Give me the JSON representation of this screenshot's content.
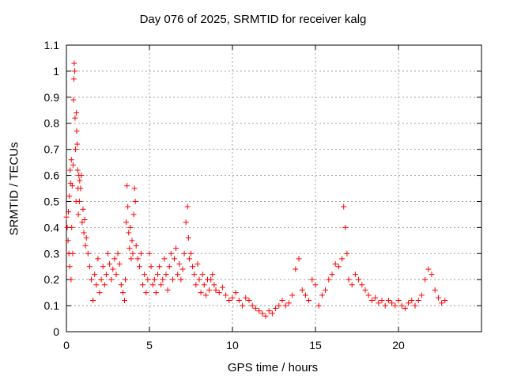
{
  "chart_data": {
    "type": "scatter",
    "title": "Day 076 of 2025, SRMTID for receiver kalg",
    "xlabel": "GPS time / hours",
    "ylabel": "SRMTID / TECUs",
    "xlim": [
      0,
      25
    ],
    "ylim": [
      0,
      1.1
    ],
    "xticks": [
      0,
      5,
      10,
      15,
      20
    ],
    "xtick_labels": [
      "0",
      "5",
      "10",
      "15",
      "20"
    ],
    "yticks": [
      0,
      0.1,
      0.2,
      0.3,
      0.4,
      0.5,
      0.6,
      0.7,
      0.8,
      0.9,
      1,
      1.1
    ],
    "ytick_labels": [
      "0",
      "0.1",
      "0.2",
      "0.3",
      "0.4",
      "0.5",
      "0.6",
      "0.7",
      "0.8",
      "0.9",
      "1",
      "1.1"
    ],
    "grid": true,
    "marker": "+",
    "color": "#ff0000",
    "series": [
      {
        "name": "SRMTID",
        "points": [
          [
            0.0,
            0.44
          ],
          [
            0.05,
            0.4
          ],
          [
            0.1,
            0.35
          ],
          [
            0.12,
            0.46
          ],
          [
            0.15,
            0.3
          ],
          [
            0.18,
            0.52
          ],
          [
            0.2,
            0.25
          ],
          [
            0.22,
            0.62
          ],
          [
            0.25,
            0.57
          ],
          [
            0.28,
            0.2
          ],
          [
            0.3,
            0.66
          ],
          [
            0.32,
            0.4
          ],
          [
            0.35,
            0.56
          ],
          [
            0.38,
            0.3
          ],
          [
            0.4,
            0.64
          ],
          [
            0.42,
            0.89
          ],
          [
            0.45,
            0.97
          ],
          [
            0.47,
            1.03
          ],
          [
            0.5,
            1.0
          ],
          [
            0.52,
            0.82
          ],
          [
            0.55,
            0.7
          ],
          [
            0.58,
            0.5
          ],
          [
            0.6,
            0.84
          ],
          [
            0.62,
            0.77
          ],
          [
            0.65,
            0.72
          ],
          [
            0.68,
            0.62
          ],
          [
            0.7,
            0.55
          ],
          [
            0.72,
            0.45
          ],
          [
            0.75,
            0.6
          ],
          [
            0.78,
            0.5
          ],
          [
            0.8,
            0.58
          ],
          [
            0.85,
            0.55
          ],
          [
            0.9,
            0.6
          ],
          [
            0.95,
            0.42
          ],
          [
            1.0,
            0.47
          ],
          [
            1.05,
            0.38
          ],
          [
            1.1,
            0.43
          ],
          [
            1.15,
            0.33
          ],
          [
            1.2,
            0.36
          ],
          [
            1.3,
            0.3
          ],
          [
            1.4,
            0.25
          ],
          [
            1.5,
            0.2
          ],
          [
            1.6,
            0.12
          ],
          [
            1.7,
            0.22
          ],
          [
            1.8,
            0.18
          ],
          [
            1.9,
            0.28
          ],
          [
            2.0,
            0.15
          ],
          [
            2.1,
            0.2
          ],
          [
            2.2,
            0.25
          ],
          [
            2.3,
            0.18
          ],
          [
            2.4,
            0.22
          ],
          [
            2.5,
            0.3
          ],
          [
            2.6,
            0.26
          ],
          [
            2.7,
            0.2
          ],
          [
            2.8,
            0.24
          ],
          [
            2.9,
            0.28
          ],
          [
            3.0,
            0.22
          ],
          [
            3.1,
            0.3
          ],
          [
            3.2,
            0.26
          ],
          [
            3.3,
            0.18
          ],
          [
            3.4,
            0.15
          ],
          [
            3.5,
            0.12
          ],
          [
            3.55,
            0.2
          ],
          [
            3.6,
            0.42
          ],
          [
            3.65,
            0.56
          ],
          [
            3.7,
            0.48
          ],
          [
            3.75,
            0.38
          ],
          [
            3.8,
            0.32
          ],
          [
            3.85,
            0.4
          ],
          [
            3.9,
            0.28
          ],
          [
            3.95,
            0.35
          ],
          [
            4.0,
            0.3
          ],
          [
            4.05,
            0.45
          ],
          [
            4.1,
            0.55
          ],
          [
            4.15,
            0.5
          ],
          [
            4.2,
            0.33
          ],
          [
            4.3,
            0.28
          ],
          [
            4.4,
            0.25
          ],
          [
            4.5,
            0.3
          ],
          [
            4.6,
            0.18
          ],
          [
            4.7,
            0.22
          ],
          [
            4.8,
            0.15
          ],
          [
            4.9,
            0.2
          ],
          [
            5.0,
            0.3
          ],
          [
            5.1,
            0.25
          ],
          [
            5.2,
            0.18
          ],
          [
            5.3,
            0.2
          ],
          [
            5.4,
            0.15
          ],
          [
            5.5,
            0.22
          ],
          [
            5.6,
            0.25
          ],
          [
            5.7,
            0.18
          ],
          [
            5.8,
            0.2
          ],
          [
            5.9,
            0.28
          ],
          [
            6.0,
            0.22
          ],
          [
            6.1,
            0.16
          ],
          [
            6.2,
            0.25
          ],
          [
            6.3,
            0.3
          ],
          [
            6.4,
            0.2
          ],
          [
            6.5,
            0.28
          ],
          [
            6.6,
            0.32
          ],
          [
            6.7,
            0.22
          ],
          [
            6.8,
            0.26
          ],
          [
            6.9,
            0.2
          ],
          [
            7.0,
            0.24
          ],
          [
            7.1,
            0.3
          ],
          [
            7.2,
            0.42
          ],
          [
            7.3,
            0.48
          ],
          [
            7.35,
            0.36
          ],
          [
            7.4,
            0.28
          ],
          [
            7.5,
            0.3
          ],
          [
            7.6,
            0.25
          ],
          [
            7.7,
            0.22
          ],
          [
            7.8,
            0.18
          ],
          [
            7.9,
            0.26
          ],
          [
            8.0,
            0.2
          ],
          [
            8.1,
            0.15
          ],
          [
            8.2,
            0.22
          ],
          [
            8.3,
            0.18
          ],
          [
            8.4,
            0.14
          ],
          [
            8.5,
            0.2
          ],
          [
            8.6,
            0.16
          ],
          [
            8.7,
            0.2
          ],
          [
            8.8,
            0.22
          ],
          [
            8.9,
            0.18
          ],
          [
            9.0,
            0.16
          ],
          [
            9.2,
            0.15
          ],
          [
            9.4,
            0.17
          ],
          [
            9.6,
            0.14
          ],
          [
            9.8,
            0.12
          ],
          [
            10.0,
            0.13
          ],
          [
            10.2,
            0.15
          ],
          [
            10.4,
            0.12
          ],
          [
            10.6,
            0.1
          ],
          [
            10.8,
            0.13
          ],
          [
            11.0,
            0.12
          ],
          [
            11.2,
            0.1
          ],
          [
            11.4,
            0.09
          ],
          [
            11.6,
            0.08
          ],
          [
            11.8,
            0.07
          ],
          [
            12.0,
            0.06
          ],
          [
            12.2,
            0.08
          ],
          [
            12.4,
            0.07
          ],
          [
            12.6,
            0.09
          ],
          [
            12.8,
            0.1
          ],
          [
            13.0,
            0.12
          ],
          [
            13.2,
            0.1
          ],
          [
            13.4,
            0.11
          ],
          [
            13.6,
            0.14
          ],
          [
            13.8,
            0.24
          ],
          [
            14.0,
            0.28
          ],
          [
            14.2,
            0.16
          ],
          [
            14.4,
            0.14
          ],
          [
            14.6,
            0.12
          ],
          [
            14.8,
            0.2
          ],
          [
            15.0,
            0.18
          ],
          [
            15.2,
            0.1
          ],
          [
            15.4,
            0.14
          ],
          [
            15.6,
            0.16
          ],
          [
            15.8,
            0.2
          ],
          [
            16.0,
            0.22
          ],
          [
            16.2,
            0.26
          ],
          [
            16.4,
            0.25
          ],
          [
            16.6,
            0.28
          ],
          [
            16.7,
            0.48
          ],
          [
            16.8,
            0.4
          ],
          [
            16.9,
            0.3
          ],
          [
            17.0,
            0.2
          ],
          [
            17.2,
            0.18
          ],
          [
            17.4,
            0.22
          ],
          [
            17.6,
            0.2
          ],
          [
            17.8,
            0.18
          ],
          [
            18.0,
            0.16
          ],
          [
            18.2,
            0.14
          ],
          [
            18.4,
            0.12
          ],
          [
            18.6,
            0.13
          ],
          [
            18.8,
            0.11
          ],
          [
            19.0,
            0.12
          ],
          [
            19.2,
            0.1
          ],
          [
            19.4,
            0.12
          ],
          [
            19.6,
            0.11
          ],
          [
            19.8,
            0.1
          ],
          [
            20.0,
            0.12
          ],
          [
            20.2,
            0.1
          ],
          [
            20.4,
            0.09
          ],
          [
            20.6,
            0.11
          ],
          [
            20.8,
            0.12
          ],
          [
            21.0,
            0.1
          ],
          [
            21.2,
            0.12
          ],
          [
            21.4,
            0.14
          ],
          [
            21.6,
            0.2
          ],
          [
            21.8,
            0.24
          ],
          [
            22.0,
            0.22
          ],
          [
            22.2,
            0.16
          ],
          [
            22.4,
            0.13
          ],
          [
            22.6,
            0.11
          ],
          [
            22.8,
            0.12
          ]
        ]
      }
    ]
  }
}
